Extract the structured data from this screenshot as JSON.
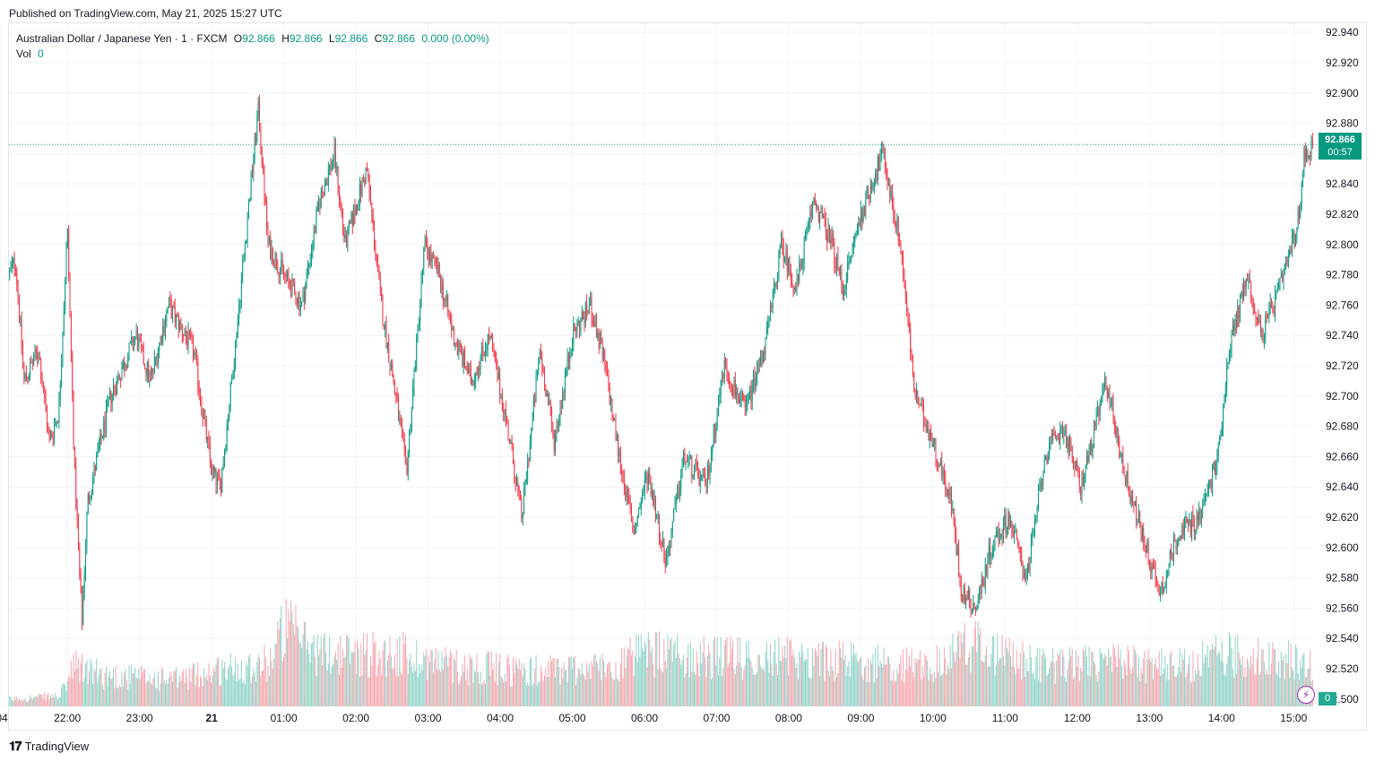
{
  "published": "Published on TradingView.com, May 21, 2025 15:27 UTC",
  "legend": {
    "symbol": "Australian Dollar / Japanese Yen · 1 · FXCM",
    "o_label": "O",
    "o": "92.866",
    "h_label": "H",
    "h": "92.866",
    "l_label": "L",
    "l": "92.866",
    "c_label": "C",
    "c": "92.866",
    "change": "0.000 (0.00%)",
    "vol_label": "Vol",
    "vol": "0"
  },
  "last_price": {
    "price": "92.866",
    "countdown": "00:57",
    "vol": "0"
  },
  "footer": {
    "brand": "TradingView"
  },
  "colors": {
    "up": "#089981",
    "down": "#f23645",
    "vol_up": "#8fd3c7",
    "vol_down": "#f5a6ad",
    "grid": "#f0f3fa",
    "tag": "#089981"
  },
  "chart_data": {
    "type": "candlestick",
    "y_ticks": [
      "92.940",
      "92.920",
      "92.900",
      "92.880",
      "92.860",
      "92.840",
      "92.820",
      "92.800",
      "92.780",
      "92.760",
      "92.740",
      "92.720",
      "92.700",
      "92.680",
      "92.660",
      "92.640",
      "92.620",
      "92.600",
      "92.580",
      "92.560",
      "92.540",
      "92.520",
      "92.500"
    ],
    "ylim": [
      92.494,
      92.946
    ],
    "x_ticks": [
      ":04",
      "22:00",
      "23:00",
      "21",
      "01:00",
      "02:00",
      "03:00",
      "04:00",
      "05:00",
      "06:00",
      "07:00",
      "08:00",
      "09:00",
      "10:00",
      "11:00",
      "12:00",
      "13:00",
      "14:00",
      "15:00"
    ],
    "x_tick_times": [
      -0.93,
      0,
      1,
      2,
      3,
      4,
      5,
      6,
      7,
      8,
      9,
      10,
      11,
      12,
      13,
      14,
      15,
      16,
      17
    ],
    "x_range": [
      -0.81,
      17.27
    ],
    "price_path": [
      [
        -0.81,
        92.78
      ],
      [
        -0.72,
        92.79
      ],
      [
        -0.6,
        92.71
      ],
      [
        -0.4,
        92.73
      ],
      [
        -0.25,
        92.67
      ],
      [
        -0.12,
        92.69
      ],
      [
        0.0,
        92.81
      ],
      [
        0.1,
        92.65
      ],
      [
        0.2,
        92.55
      ],
      [
        0.28,
        92.63
      ],
      [
        0.6,
        92.7
      ],
      [
        0.95,
        92.74
      ],
      [
        1.15,
        92.71
      ],
      [
        1.4,
        92.76
      ],
      [
        1.75,
        92.73
      ],
      [
        2.0,
        92.65
      ],
      [
        2.12,
        92.64
      ],
      [
        2.3,
        92.72
      ],
      [
        2.5,
        92.82
      ],
      [
        2.65,
        92.89
      ],
      [
        2.78,
        92.8
      ],
      [
        3.0,
        92.78
      ],
      [
        3.25,
        92.76
      ],
      [
        3.5,
        92.83
      ],
      [
        3.7,
        92.86
      ],
      [
        3.85,
        92.8
      ],
      [
        4.15,
        92.85
      ],
      [
        4.35,
        92.76
      ],
      [
        4.55,
        92.7
      ],
      [
        4.7,
        92.65
      ],
      [
        4.95,
        92.8
      ],
      [
        5.15,
        92.78
      ],
      [
        5.35,
        92.74
      ],
      [
        5.6,
        92.71
      ],
      [
        5.85,
        92.74
      ],
      [
        6.1,
        92.68
      ],
      [
        6.3,
        92.62
      ],
      [
        6.55,
        92.73
      ],
      [
        6.75,
        92.67
      ],
      [
        7.0,
        92.74
      ],
      [
        7.25,
        92.76
      ],
      [
        7.45,
        92.72
      ],
      [
        7.65,
        92.66
      ],
      [
        7.85,
        92.61
      ],
      [
        8.05,
        92.65
      ],
      [
        8.3,
        92.59
      ],
      [
        8.55,
        92.66
      ],
      [
        8.85,
        92.64
      ],
      [
        9.1,
        92.72
      ],
      [
        9.4,
        92.69
      ],
      [
        9.7,
        92.74
      ],
      [
        9.9,
        92.8
      ],
      [
        10.1,
        92.77
      ],
      [
        10.35,
        92.83
      ],
      [
        10.6,
        92.8
      ],
      [
        10.75,
        92.77
      ],
      [
        11.0,
        92.82
      ],
      [
        11.3,
        92.86
      ],
      [
        11.55,
        92.8
      ],
      [
        11.75,
        92.7
      ],
      [
        12.0,
        92.67
      ],
      [
        12.25,
        92.63
      ],
      [
        12.4,
        92.57
      ],
      [
        12.6,
        92.56
      ],
      [
        12.8,
        92.6
      ],
      [
        13.05,
        92.62
      ],
      [
        13.3,
        92.58
      ],
      [
        13.55,
        92.66
      ],
      [
        13.8,
        92.68
      ],
      [
        14.05,
        92.64
      ],
      [
        14.3,
        92.69
      ],
      [
        14.4,
        92.71
      ],
      [
        14.65,
        92.65
      ],
      [
        14.95,
        92.6
      ],
      [
        15.15,
        92.57
      ],
      [
        15.4,
        92.61
      ],
      [
        15.7,
        92.62
      ],
      [
        15.95,
        92.66
      ],
      [
        16.1,
        92.73
      ],
      [
        16.35,
        92.78
      ],
      [
        16.55,
        92.74
      ],
      [
        16.8,
        92.77
      ],
      [
        17.05,
        92.81
      ],
      [
        17.15,
        92.86
      ],
      [
        17.27,
        92.866
      ]
    ],
    "volume_profile": [
      [
        -0.81,
        0.08
      ],
      [
        -0.1,
        0.12
      ],
      [
        0.1,
        0.45
      ],
      [
        0.5,
        0.35
      ],
      [
        1.5,
        0.3
      ],
      [
        2.0,
        0.4
      ],
      [
        2.8,
        0.5
      ],
      [
        3.0,
        0.9
      ],
      [
        3.5,
        0.6
      ],
      [
        4.5,
        0.6
      ],
      [
        5.5,
        0.45
      ],
      [
        6.5,
        0.4
      ],
      [
        7.5,
        0.45
      ],
      [
        8.0,
        0.6
      ],
      [
        9.0,
        0.55
      ],
      [
        10.0,
        0.55
      ],
      [
        11.0,
        0.5
      ],
      [
        12.0,
        0.45
      ],
      [
        12.5,
        0.7
      ],
      [
        13.5,
        0.45
      ],
      [
        14.5,
        0.5
      ],
      [
        15.5,
        0.45
      ],
      [
        16.0,
        0.6
      ],
      [
        16.5,
        0.55
      ],
      [
        17.27,
        0.5
      ]
    ],
    "volume_max_value_fraction": 1.0
  }
}
